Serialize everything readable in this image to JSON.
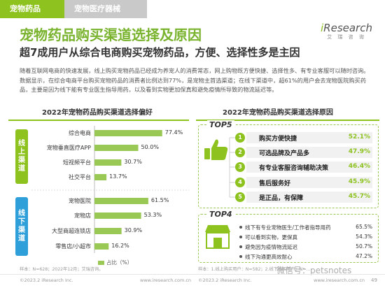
{
  "tabs": [
    {
      "label": "宠物药品"
    },
    {
      "label": "宠物医疗器械"
    }
  ],
  "logo": {
    "main_i": "i",
    "main_rest": "Research",
    "sub": "艾 瑞 咨 询"
  },
  "title": "宠物药品购买渠道选择及原因",
  "subtitle": "超7成用户从综合电商购买宠物药品，方便、选择性多是主因",
  "body": "随着互联网电商的快速发展，线上购买宠物药品已经成为养宠人的消费常态，网上购物既方便快捷、选择性多、有专业客服可以随时咨询。数据显示，在综合电商平台购买宠物药品的消费者比例达到77%，是宠物主首选渠道；在线下渠道中，超61%的用户会去宠物医院购买药品，主要是因为线下能有专业医生指导用药，以及看到实物更加保真和避免疫情所导致的物流延迟等。",
  "left_panel": {
    "title": "2022年宠物药品购买渠道选择偏好",
    "online_label": "线上渠道",
    "offline_label": "线下渠道",
    "legend": "占比（%）"
  },
  "right_panel": {
    "title": "2022年宠物药品购买渠道选择原因",
    "top5_badge": "TOP5",
    "top4_badge": "TOP4",
    "top5": [
      {
        "num": "1",
        "label": "购买方便快捷",
        "pct": "52.1%"
      },
      {
        "num": "2",
        "label": "可选品牌及产品多",
        "pct": "47.9%"
      },
      {
        "num": "3",
        "label": "有专业客服咨询辅助决策",
        "pct": "46.4%"
      },
      {
        "num": "4",
        "label": "售后服务好",
        "pct": "45.9%"
      },
      {
        "num": "5",
        "label": "是正品，有保障",
        "pct": "45.7%"
      }
    ],
    "top4": [
      {
        "label": "线下有专业宠物医生/工作者指导用药",
        "pct": "65.5%"
      },
      {
        "label": "可以看到实物，更保真",
        "pct": "54.3%"
      },
      {
        "label": "避免因为疫情物流延迟",
        "pct": "50.7%"
      },
      {
        "label": "线下沟通更高效耐心",
        "pct": "47.2%"
      }
    ]
  },
  "chart_data": {
    "type": "bar",
    "orientation": "horizontal",
    "title": "2022年宠物药品购买渠道选择偏好",
    "groups": [
      {
        "name": "线上渠道",
        "categories": [
          "综合电商",
          "宠物垂直医疗APP",
          "短视频平台",
          "社交平台"
        ],
        "values": [
          77.4,
          50.0,
          30.7,
          13.7
        ],
        "labels": [
          "77.4%",
          "50.0%",
          "30.7%",
          "13.7%"
        ]
      },
      {
        "name": "线下渠道",
        "categories": [
          "宠物医院",
          "宠物店",
          "大型商超连锁店",
          "零售店/小超市"
        ],
        "values": [
          61.5,
          53.3,
          30.9,
          16.2
        ],
        "labels": [
          "61.5%",
          "53.3%",
          "30.9%",
          "16.2%"
        ]
      }
    ],
    "xlabel": "占比（%）",
    "xlim": [
      0,
      100
    ],
    "color": "#9ac854"
  },
  "source_left": "样本：N=628；2022年12月；艾瑞咨询。",
  "source_right": "样本：1.线上购买用户：N=582；2.线下购买用户：N=...",
  "footer": {
    "left": "©2023.2 iResearch Inc.",
    "center": "www.iresearch.com.cn",
    "right": "©2023.2 iResearch Inc.",
    "center2": "www.iresearch.com.cn",
    "page": "49"
  },
  "watermark": "微信号：petsnotes",
  "colors": {
    "accent": "#8dc21f",
    "bar": "#9ac854",
    "online": "#8dc21f",
    "offline": "#2e9fd8",
    "num_circle": "#8dc21f"
  }
}
